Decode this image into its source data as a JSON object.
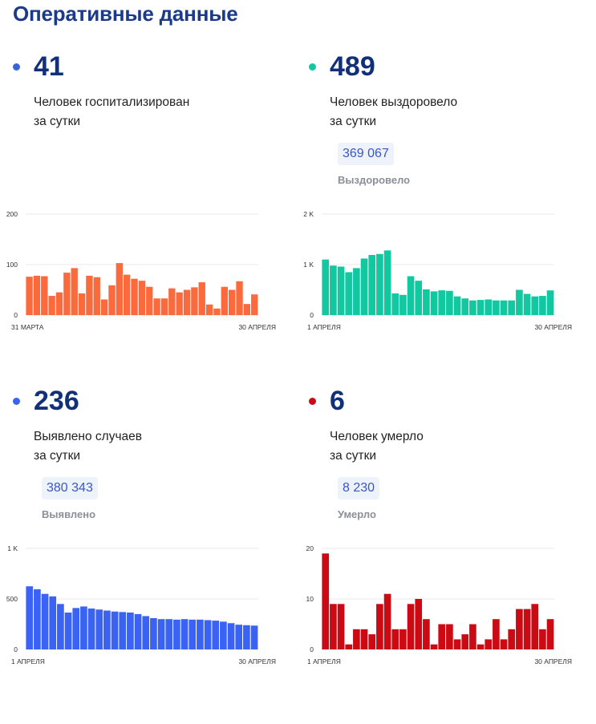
{
  "page": {
    "title": "Оперативные данные"
  },
  "panels": [
    {
      "key": "hospitalized",
      "number": "41",
      "line1": "Человек госпитализирован",
      "line2": "за сутки",
      "total": null,
      "total_label": null,
      "color": "#fa6a3d",
      "dot_color": "#3a63d9"
    },
    {
      "key": "recovered",
      "number": "489",
      "line1": "Человек выздоровело",
      "line2": "за сутки",
      "total": "369 067",
      "total_label": "Выздоровело",
      "color": "#12c8a0",
      "dot_color": "#12c8a0"
    },
    {
      "key": "cases",
      "number": "236",
      "line1": "Выявлено случаев",
      "line2": "за сутки",
      "total": "380 343",
      "total_label": "Выявлено",
      "color": "#3a63f3",
      "dot_color": "#3a63f3"
    },
    {
      "key": "deaths",
      "number": "6",
      "line1": "Человек умерло",
      "line2": "за сутки",
      "total": "8 230",
      "total_label": "Умерло",
      "color": "#cc0a14",
      "dot_color": "#cc0a14"
    }
  ],
  "chart_data": [
    {
      "type": "bar",
      "title": "",
      "y_ticks": [
        "200",
        "100",
        "0"
      ],
      "ylim": [
        0,
        200
      ],
      "x_start_label": "31 МАРТА",
      "x_end_label": "30 АПРЕЛЯ",
      "values": [
        76,
        78,
        77,
        38,
        45,
        84,
        93,
        43,
        78,
        75,
        31,
        59,
        103,
        80,
        72,
        68,
        56,
        33,
        33,
        53,
        45,
        50,
        55,
        65,
        21,
        13,
        56,
        50,
        67,
        22,
        41
      ],
      "grid": true,
      "color": "#fa6a3d"
    },
    {
      "type": "bar",
      "title": "",
      "y_ticks": [
        "2 K",
        "1 K",
        "0"
      ],
      "ylim": [
        0,
        2000
      ],
      "x_start_label": "1 АПРЕЛЯ",
      "x_end_label": "30 АПРЕЛЯ",
      "values": [
        1100,
        980,
        960,
        850,
        930,
        1120,
        1190,
        1210,
        1280,
        430,
        400,
        770,
        680,
        510,
        470,
        490,
        480,
        370,
        330,
        290,
        300,
        310,
        290,
        290,
        290,
        500,
        420,
        370,
        380,
        489
      ],
      "grid": true,
      "color": "#12c8a0"
    },
    {
      "type": "bar",
      "title": "",
      "y_ticks": [
        "1 K",
        "500",
        "0"
      ],
      "ylim": [
        0,
        1000
      ],
      "x_start_label": "1 АПРЕЛЯ",
      "x_end_label": "30 АПРЕЛЯ",
      "values": [
        625,
        595,
        550,
        525,
        450,
        365,
        410,
        425,
        405,
        395,
        385,
        375,
        370,
        365,
        350,
        330,
        310,
        300,
        300,
        295,
        300,
        295,
        295,
        290,
        285,
        275,
        260,
        245,
        240,
        236
      ],
      "grid": true,
      "color": "#3a63f3"
    },
    {
      "type": "bar",
      "title": "",
      "y_ticks": [
        "20",
        "10",
        "0"
      ],
      "ylim": [
        0,
        20
      ],
      "x_start_label": "1 АПРЕЛЯ",
      "x_end_label": "30 АПРЕЛЯ",
      "values": [
        19,
        9,
        9,
        1,
        4,
        4,
        3,
        9,
        11,
        4,
        4,
        9,
        10,
        6,
        1,
        5,
        5,
        2,
        3,
        5,
        1,
        2,
        6,
        2,
        4,
        8,
        8,
        9,
        4,
        6
      ],
      "grid": true,
      "color": "#cc0a14"
    }
  ]
}
